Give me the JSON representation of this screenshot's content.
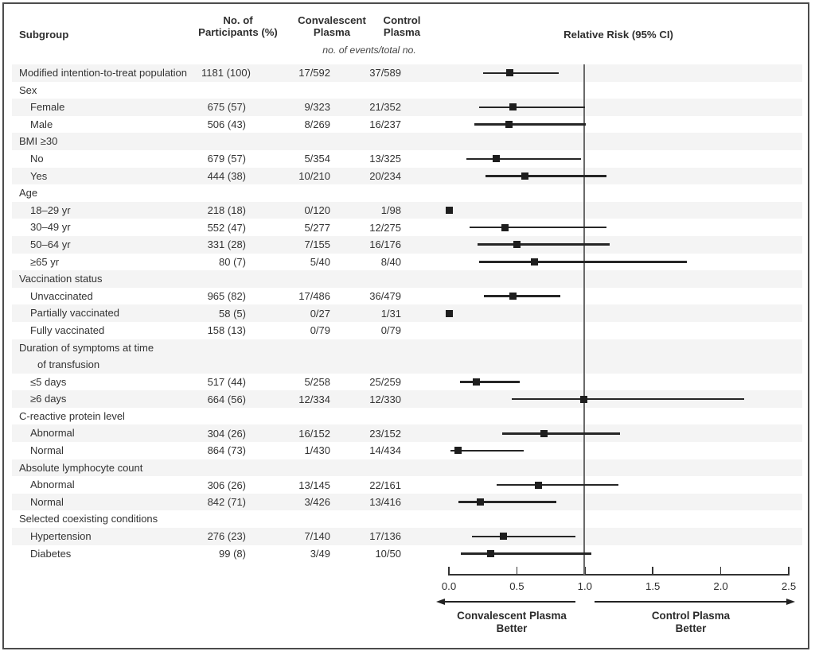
{
  "figure": {
    "columns": {
      "subgroup": "Subgroup",
      "participants_line1": "No. of",
      "participants_line2": "Participants (%)",
      "convalescent_line1": "Convalescent",
      "convalescent_line2": "Plasma",
      "control_line1": "Control",
      "control_line2": "Plasma",
      "events_note": "no. of events/total no.",
      "relative_risk": "Relative Risk (95% CI)"
    },
    "axis_labels": {
      "left_line1": "Convalescent Plasma",
      "left_line2": "Better",
      "right_line1": "Control Plasma",
      "right_line2": "Better"
    },
    "colors": {
      "band": "#f4f4f4",
      "text": "#333333",
      "marker": "#1e1e1e",
      "reference_line": "#6a6a6a",
      "frame": "#4c4c4c"
    }
  },
  "chart_data": {
    "type": "forest",
    "title": "Relative Risk (95% CI)",
    "x_axis": {
      "min": 0.0,
      "max": 2.5,
      "ticks": [
        0.0,
        0.5,
        1.0,
        1.5,
        2.0,
        2.5
      ],
      "tick_labels": [
        "0.0",
        "0.5",
        "1.0",
        "1.5",
        "2.0",
        "2.5"
      ],
      "reference_line": 1.0
    },
    "rows": [
      {
        "label": "Modified intention-to-treat population",
        "indent": 0,
        "shaded": true,
        "participants": "1181 (100)",
        "convalescent": "17/592",
        "control": "37/589",
        "rr": 0.45,
        "lo": 0.25,
        "hi": 0.81
      },
      {
        "label": "Sex",
        "indent": 0,
        "shaded": false,
        "group": true
      },
      {
        "label": "Female",
        "indent": 1,
        "shaded": true,
        "participants": "675 (57)",
        "convalescent": "9/323",
        "control": "21/352",
        "rr": 0.47,
        "lo": 0.22,
        "hi": 1.0
      },
      {
        "label": "Male",
        "indent": 1,
        "shaded": false,
        "participants": "506 (43)",
        "convalescent": "8/269",
        "control": "16/237",
        "rr": 0.44,
        "lo": 0.19,
        "hi": 1.01
      },
      {
        "label": "BMI ≥30",
        "indent": 0,
        "shaded": true,
        "group": true
      },
      {
        "label": "No",
        "indent": 1,
        "shaded": false,
        "participants": "679 (57)",
        "convalescent": "5/354",
        "control": "13/325",
        "rr": 0.35,
        "lo": 0.13,
        "hi": 0.97
      },
      {
        "label": "Yes",
        "indent": 1,
        "shaded": true,
        "participants": "444 (38)",
        "convalescent": "10/210",
        "control": "20/234",
        "rr": 0.56,
        "lo": 0.27,
        "hi": 1.16
      },
      {
        "label": "Age",
        "indent": 0,
        "shaded": false,
        "group": true
      },
      {
        "label": "18–29 yr",
        "indent": 1,
        "shaded": true,
        "participants": "218 (18)",
        "convalescent": "0/120",
        "control": "1/98",
        "rr": 0.0,
        "lo": null,
        "hi": null
      },
      {
        "label": "30–49 yr",
        "indent": 1,
        "shaded": false,
        "participants": "552 (47)",
        "convalescent": "5/277",
        "control": "12/275",
        "rr": 0.41,
        "lo": 0.15,
        "hi": 1.16
      },
      {
        "label": "50–64 yr",
        "indent": 1,
        "shaded": true,
        "participants": "331 (28)",
        "convalescent": "7/155",
        "control": "16/176",
        "rr": 0.5,
        "lo": 0.21,
        "hi": 1.18
      },
      {
        "label": "≥65 yr",
        "indent": 1,
        "shaded": false,
        "participants": "80 (7)",
        "convalescent": "5/40",
        "control": "8/40",
        "rr": 0.63,
        "lo": 0.22,
        "hi": 1.75
      },
      {
        "label": "Vaccination status",
        "indent": 0,
        "shaded": true,
        "group": true
      },
      {
        "label": "Unvaccinated",
        "indent": 1,
        "shaded": false,
        "participants": "965 (82)",
        "convalescent": "17/486",
        "control": "36/479",
        "rr": 0.47,
        "lo": 0.26,
        "hi": 0.82
      },
      {
        "label": "Partially vaccinated",
        "indent": 1,
        "shaded": true,
        "participants": "58 (5)",
        "convalescent": "0/27",
        "control": "1/31",
        "rr": 0.0,
        "lo": null,
        "hi": null
      },
      {
        "label": "Fully vaccinated",
        "indent": 1,
        "shaded": false,
        "participants": "158 (13)",
        "convalescent": "0/79",
        "control": "0/79",
        "rr": null,
        "lo": null,
        "hi": null
      },
      {
        "label": "Duration of symptoms at time",
        "label2": "of transfusion",
        "indent": 0,
        "shaded": true,
        "group": true,
        "double": true
      },
      {
        "label": "≤5 days",
        "indent": 1,
        "shaded": false,
        "participants": "517 (44)",
        "convalescent": "5/258",
        "control": "25/259",
        "rr": 0.2,
        "lo": 0.08,
        "hi": 0.52
      },
      {
        "label": "≥6 days",
        "indent": 1,
        "shaded": true,
        "participants": "664 (56)",
        "convalescent": "12/334",
        "control": "12/330",
        "rr": 0.99,
        "lo": 0.46,
        "hi": 2.17
      },
      {
        "label": "C-reactive protein level",
        "indent": 0,
        "shaded": false,
        "group": true
      },
      {
        "label": "Abnormal",
        "indent": 1,
        "shaded": true,
        "participants": "304 (26)",
        "convalescent": "16/152",
        "control": "23/152",
        "rr": 0.7,
        "lo": 0.39,
        "hi": 1.26
      },
      {
        "label": "Normal",
        "indent": 1,
        "shaded": false,
        "participants": "864 (73)",
        "convalescent": "1/430",
        "control": "14/434",
        "rr": 0.07,
        "lo": 0.01,
        "hi": 0.55
      },
      {
        "label": "Absolute lymphocyte count",
        "indent": 0,
        "shaded": true,
        "group": true
      },
      {
        "label": "Abnormal",
        "indent": 1,
        "shaded": false,
        "participants": "306 (26)",
        "convalescent": "13/145",
        "control": "22/161",
        "rr": 0.66,
        "lo": 0.35,
        "hi": 1.25
      },
      {
        "label": "Normal",
        "indent": 1,
        "shaded": true,
        "participants": "842 (71)",
        "convalescent": "3/426",
        "control": "13/416",
        "rr": 0.23,
        "lo": 0.07,
        "hi": 0.79
      },
      {
        "label": "Selected coexisting conditions",
        "indent": 0,
        "shaded": false,
        "group": true
      },
      {
        "label": "Hypertension",
        "indent": 1,
        "shaded": true,
        "participants": "276 (23)",
        "convalescent": "7/140",
        "control": "17/136",
        "rr": 0.4,
        "lo": 0.17,
        "hi": 0.93
      },
      {
        "label": "Diabetes",
        "indent": 1,
        "shaded": false,
        "participants": "99 (8)",
        "convalescent": "3/49",
        "control": "10/50",
        "rr": 0.31,
        "lo": 0.09,
        "hi": 1.05
      }
    ]
  }
}
